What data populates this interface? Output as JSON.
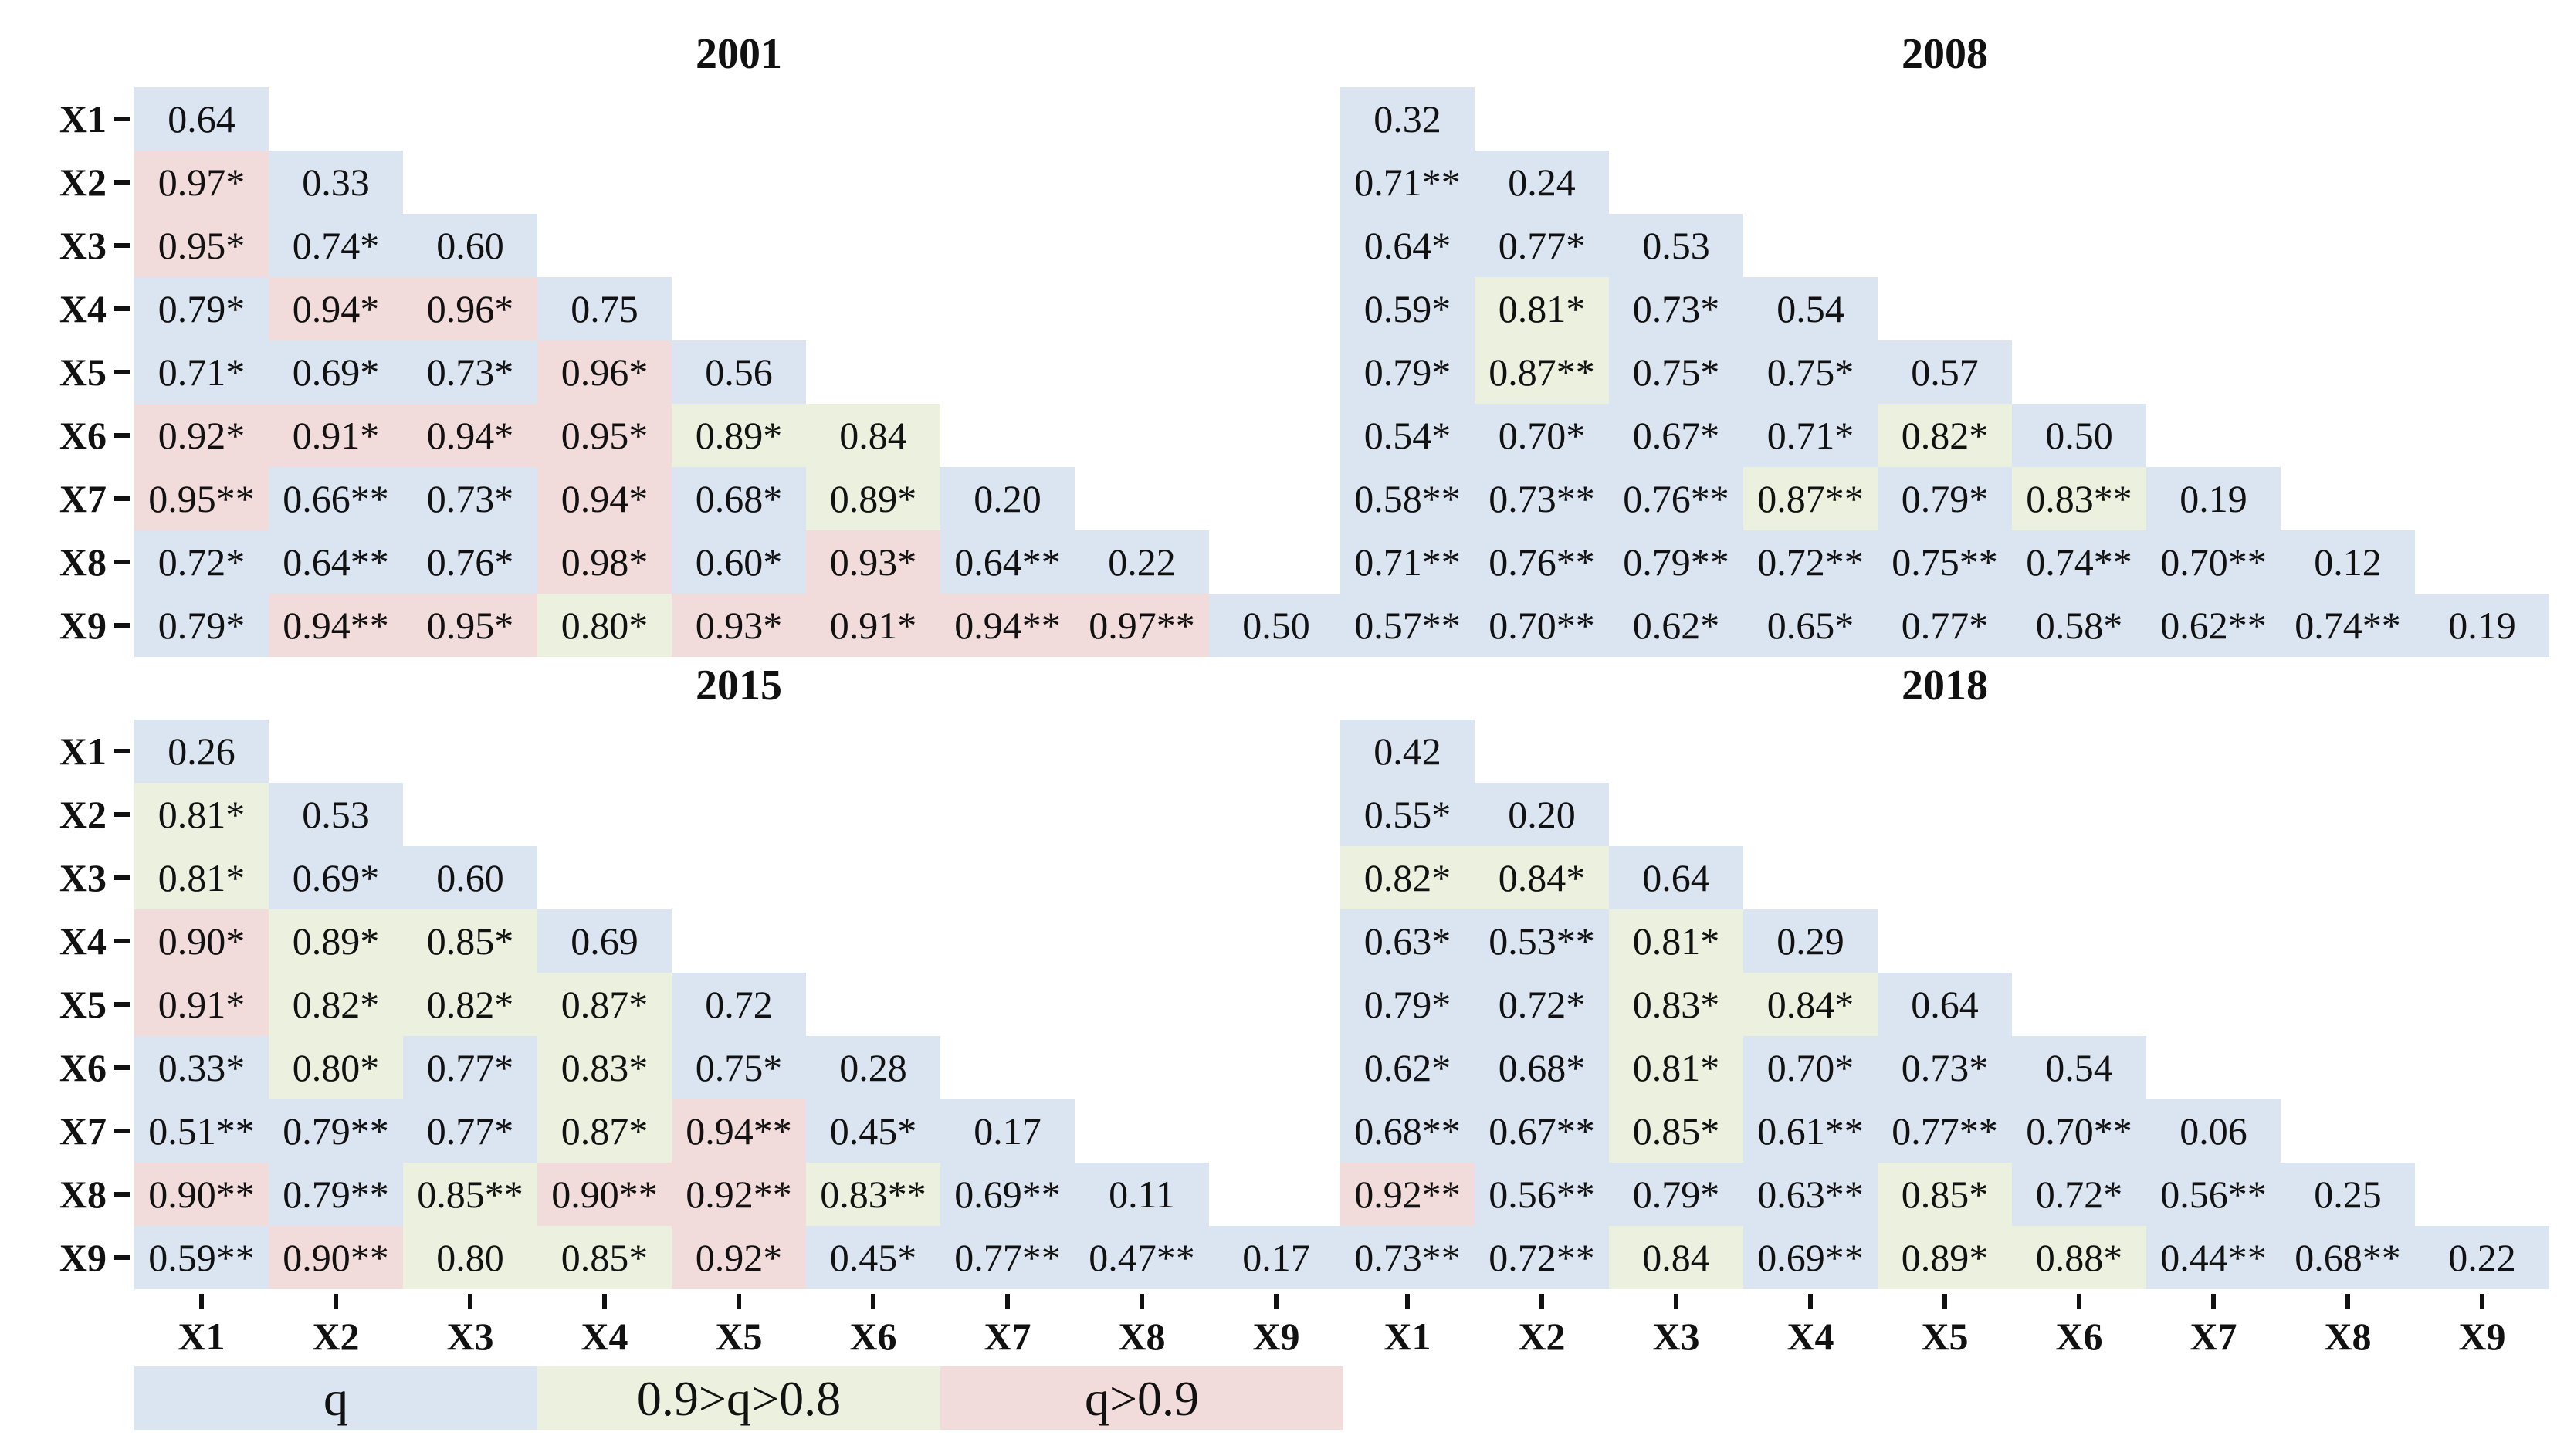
{
  "colors": {
    "low": "#dbe5f1",
    "mid": "#ebf1de",
    "high": "#f2dcdb",
    "tick": "#111111"
  },
  "chart_data": [
    {
      "type": "heatmap",
      "title": "2001",
      "xlabels": [
        "X1",
        "X2",
        "X3",
        "X4",
        "X5",
        "X6",
        "X7",
        "X8",
        "X9"
      ],
      "ylabels": [
        "X1",
        "X2",
        "X3",
        "X4",
        "X5",
        "X6",
        "X7",
        "X8",
        "X9"
      ],
      "rows": [
        [
          {
            "v": "0.64",
            "c": "low"
          }
        ],
        [
          {
            "v": "0.97*",
            "c": "high"
          },
          {
            "v": "0.33",
            "c": "low"
          }
        ],
        [
          {
            "v": "0.95*",
            "c": "high"
          },
          {
            "v": "0.74*",
            "c": "low"
          },
          {
            "v": "0.60",
            "c": "low"
          }
        ],
        [
          {
            "v": "0.79*",
            "c": "low"
          },
          {
            "v": "0.94*",
            "c": "high"
          },
          {
            "v": "0.96*",
            "c": "high"
          },
          {
            "v": "0.75",
            "c": "low"
          }
        ],
        [
          {
            "v": "0.71*",
            "c": "low"
          },
          {
            "v": "0.69*",
            "c": "low"
          },
          {
            "v": "0.73*",
            "c": "low"
          },
          {
            "v": "0.96*",
            "c": "high"
          },
          {
            "v": "0.56",
            "c": "low"
          }
        ],
        [
          {
            "v": "0.92*",
            "c": "high"
          },
          {
            "v": "0.91*",
            "c": "high"
          },
          {
            "v": "0.94*",
            "c": "high"
          },
          {
            "v": "0.95*",
            "c": "high"
          },
          {
            "v": "0.89*",
            "c": "mid"
          },
          {
            "v": "0.84",
            "c": "mid"
          }
        ],
        [
          {
            "v": "0.95**",
            "c": "high"
          },
          {
            "v": "0.66**",
            "c": "low"
          },
          {
            "v": "0.73*",
            "c": "low"
          },
          {
            "v": "0.94*",
            "c": "high"
          },
          {
            "v": "0.68*",
            "c": "low"
          },
          {
            "v": "0.89*",
            "c": "mid"
          },
          {
            "v": "0.20",
            "c": "low"
          }
        ],
        [
          {
            "v": "0.72*",
            "c": "low"
          },
          {
            "v": "0.64**",
            "c": "low"
          },
          {
            "v": "0.76*",
            "c": "low"
          },
          {
            "v": "0.98*",
            "c": "high"
          },
          {
            "v": "0.60*",
            "c": "low"
          },
          {
            "v": "0.93*",
            "c": "high"
          },
          {
            "v": "0.64**",
            "c": "low"
          },
          {
            "v": "0.22",
            "c": "low"
          }
        ],
        [
          {
            "v": "0.79*",
            "c": "low"
          },
          {
            "v": "0.94**",
            "c": "high"
          },
          {
            "v": "0.95*",
            "c": "high"
          },
          {
            "v": "0.80*",
            "c": "mid"
          },
          {
            "v": "0.93*",
            "c": "high"
          },
          {
            "v": "0.91*",
            "c": "high"
          },
          {
            "v": "0.94**",
            "c": "high"
          },
          {
            "v": "0.97**",
            "c": "high"
          },
          {
            "v": "0.50",
            "c": "low"
          }
        ]
      ]
    },
    {
      "type": "heatmap",
      "title": "2008",
      "xlabels": [
        "X1",
        "X2",
        "X3",
        "X4",
        "X5",
        "X6",
        "X7",
        "X8",
        "X9"
      ],
      "ylabels": [],
      "rows": [
        [
          {
            "v": "0.32",
            "c": "low"
          }
        ],
        [
          {
            "v": "0.71**",
            "c": "low"
          },
          {
            "v": "0.24",
            "c": "low"
          }
        ],
        [
          {
            "v": "0.64*",
            "c": "low"
          },
          {
            "v": "0.77*",
            "c": "low"
          },
          {
            "v": "0.53",
            "c": "low"
          }
        ],
        [
          {
            "v": "0.59*",
            "c": "low"
          },
          {
            "v": "0.81*",
            "c": "mid"
          },
          {
            "v": "0.73*",
            "c": "low"
          },
          {
            "v": "0.54",
            "c": "low"
          }
        ],
        [
          {
            "v": "0.79*",
            "c": "low"
          },
          {
            "v": "0.87**",
            "c": "mid"
          },
          {
            "v": "0.75*",
            "c": "low"
          },
          {
            "v": "0.75*",
            "c": "low"
          },
          {
            "v": "0.57",
            "c": "low"
          }
        ],
        [
          {
            "v": "0.54*",
            "c": "low"
          },
          {
            "v": "0.70*",
            "c": "low"
          },
          {
            "v": "0.67*",
            "c": "low"
          },
          {
            "v": "0.71*",
            "c": "low"
          },
          {
            "v": "0.82*",
            "c": "mid"
          },
          {
            "v": "0.50",
            "c": "low"
          }
        ],
        [
          {
            "v": "0.58**",
            "c": "low"
          },
          {
            "v": "0.73**",
            "c": "low"
          },
          {
            "v": "0.76**",
            "c": "low"
          },
          {
            "v": "0.87**",
            "c": "mid"
          },
          {
            "v": "0.79*",
            "c": "low"
          },
          {
            "v": "0.83**",
            "c": "mid"
          },
          {
            "v": "0.19",
            "c": "low"
          }
        ],
        [
          {
            "v": "0.71**",
            "c": "low"
          },
          {
            "v": "0.76**",
            "c": "low"
          },
          {
            "v": "0.79**",
            "c": "low"
          },
          {
            "v": "0.72**",
            "c": "low"
          },
          {
            "v": "0.75**",
            "c": "low"
          },
          {
            "v": "0.74**",
            "c": "low"
          },
          {
            "v": "0.70**",
            "c": "low"
          },
          {
            "v": "0.12",
            "c": "low"
          }
        ],
        [
          {
            "v": "0.57**",
            "c": "low"
          },
          {
            "v": "0.70**",
            "c": "low"
          },
          {
            "v": "0.62*",
            "c": "low"
          },
          {
            "v": "0.65*",
            "c": "low"
          },
          {
            "v": "0.77*",
            "c": "low"
          },
          {
            "v": "0.58*",
            "c": "low"
          },
          {
            "v": "0.62**",
            "c": "low"
          },
          {
            "v": "0.74**",
            "c": "low"
          },
          {
            "v": "0.19",
            "c": "low"
          }
        ]
      ]
    },
    {
      "type": "heatmap",
      "title": "2015",
      "xlabels": [
        "X1",
        "X2",
        "X3",
        "X4",
        "X5",
        "X6",
        "X7",
        "X8",
        "X9"
      ],
      "ylabels": [
        "X1",
        "X2",
        "X3",
        "X4",
        "X5",
        "X6",
        "X7",
        "X8",
        "X9"
      ],
      "rows": [
        [
          {
            "v": "0.26",
            "c": "low"
          }
        ],
        [
          {
            "v": "0.81*",
            "c": "mid"
          },
          {
            "v": "0.53",
            "c": "low"
          }
        ],
        [
          {
            "v": "0.81*",
            "c": "mid"
          },
          {
            "v": "0.69*",
            "c": "low"
          },
          {
            "v": "0.60",
            "c": "low"
          }
        ],
        [
          {
            "v": "0.90*",
            "c": "high"
          },
          {
            "v": "0.89*",
            "c": "mid"
          },
          {
            "v": "0.85*",
            "c": "mid"
          },
          {
            "v": "0.69",
            "c": "low"
          }
        ],
        [
          {
            "v": "0.91*",
            "c": "high"
          },
          {
            "v": "0.82*",
            "c": "mid"
          },
          {
            "v": "0.82*",
            "c": "mid"
          },
          {
            "v": "0.87*",
            "c": "mid"
          },
          {
            "v": "0.72",
            "c": "low"
          }
        ],
        [
          {
            "v": "0.33*",
            "c": "low"
          },
          {
            "v": "0.80*",
            "c": "mid"
          },
          {
            "v": "0.77*",
            "c": "low"
          },
          {
            "v": "0.83*",
            "c": "mid"
          },
          {
            "v": "0.75*",
            "c": "low"
          },
          {
            "v": "0.28",
            "c": "low"
          }
        ],
        [
          {
            "v": "0.51**",
            "c": "low"
          },
          {
            "v": "0.79**",
            "c": "low"
          },
          {
            "v": "0.77*",
            "c": "low"
          },
          {
            "v": "0.87*",
            "c": "mid"
          },
          {
            "v": "0.94**",
            "c": "high"
          },
          {
            "v": "0.45*",
            "c": "low"
          },
          {
            "v": "0.17",
            "c": "low"
          }
        ],
        [
          {
            "v": "0.90**",
            "c": "high"
          },
          {
            "v": "0.79**",
            "c": "low"
          },
          {
            "v": "0.85**",
            "c": "mid"
          },
          {
            "v": "0.90**",
            "c": "high"
          },
          {
            "v": "0.92**",
            "c": "high"
          },
          {
            "v": "0.83**",
            "c": "mid"
          },
          {
            "v": "0.69**",
            "c": "low"
          },
          {
            "v": "0.11",
            "c": "low"
          }
        ],
        [
          {
            "v": "0.59**",
            "c": "low"
          },
          {
            "v": "0.90**",
            "c": "high"
          },
          {
            "v": "0.80",
            "c": "mid"
          },
          {
            "v": "0.85*",
            "c": "mid"
          },
          {
            "v": "0.92*",
            "c": "high"
          },
          {
            "v": "0.45*",
            "c": "low"
          },
          {
            "v": "0.77**",
            "c": "low"
          },
          {
            "v": "0.47**",
            "c": "low"
          },
          {
            "v": "0.17",
            "c": "low"
          }
        ]
      ]
    },
    {
      "type": "heatmap",
      "title": "2018",
      "xlabels": [
        "X1",
        "X2",
        "X3",
        "X4",
        "X5",
        "X6",
        "X7",
        "X8",
        "X9"
      ],
      "ylabels": [],
      "rows": [
        [
          {
            "v": "0.42",
            "c": "low"
          }
        ],
        [
          {
            "v": "0.55*",
            "c": "low"
          },
          {
            "v": "0.20",
            "c": "low"
          }
        ],
        [
          {
            "v": "0.82*",
            "c": "mid"
          },
          {
            "v": "0.84*",
            "c": "mid"
          },
          {
            "v": "0.64",
            "c": "low"
          }
        ],
        [
          {
            "v": "0.63*",
            "c": "low"
          },
          {
            "v": "0.53**",
            "c": "low"
          },
          {
            "v": "0.81*",
            "c": "mid"
          },
          {
            "v": "0.29",
            "c": "low"
          }
        ],
        [
          {
            "v": "0.79*",
            "c": "low"
          },
          {
            "v": "0.72*",
            "c": "low"
          },
          {
            "v": "0.83*",
            "c": "mid"
          },
          {
            "v": "0.84*",
            "c": "mid"
          },
          {
            "v": "0.64",
            "c": "low"
          }
        ],
        [
          {
            "v": "0.62*",
            "c": "low"
          },
          {
            "v": "0.68*",
            "c": "low"
          },
          {
            "v": "0.81*",
            "c": "mid"
          },
          {
            "v": "0.70*",
            "c": "low"
          },
          {
            "v": "0.73*",
            "c": "low"
          },
          {
            "v": "0.54",
            "c": "low"
          }
        ],
        [
          {
            "v": "0.68**",
            "c": "low"
          },
          {
            "v": "0.67**",
            "c": "low"
          },
          {
            "v": "0.85*",
            "c": "mid"
          },
          {
            "v": "0.61**",
            "c": "low"
          },
          {
            "v": "0.77**",
            "c": "low"
          },
          {
            "v": "0.70**",
            "c": "low"
          },
          {
            "v": "0.06",
            "c": "low"
          }
        ],
        [
          {
            "v": "0.92**",
            "c": "high"
          },
          {
            "v": "0.56**",
            "c": "low"
          },
          {
            "v": "0.79*",
            "c": "low"
          },
          {
            "v": "0.63**",
            "c": "low"
          },
          {
            "v": "0.85*",
            "c": "mid"
          },
          {
            "v": "0.72*",
            "c": "low"
          },
          {
            "v": "0.56**",
            "c": "low"
          },
          {
            "v": "0.25",
            "c": "low"
          }
        ],
        [
          {
            "v": "0.73**",
            "c": "low"
          },
          {
            "v": "0.72**",
            "c": "low"
          },
          {
            "v": "0.84",
            "c": "mid"
          },
          {
            "v": "0.69**",
            "c": "low"
          },
          {
            "v": "0.89*",
            "c": "mid"
          },
          {
            "v": "0.88*",
            "c": "mid"
          },
          {
            "v": "0.44**",
            "c": "low"
          },
          {
            "v": "0.68**",
            "c": "low"
          },
          {
            "v": "0.22",
            "c": "low"
          }
        ]
      ]
    }
  ],
  "legend": {
    "items": [
      {
        "label": "q",
        "c": "low"
      },
      {
        "label": "0.9>q>0.8",
        "c": "mid"
      },
      {
        "label": "q>0.9",
        "c": "high"
      }
    ]
  }
}
